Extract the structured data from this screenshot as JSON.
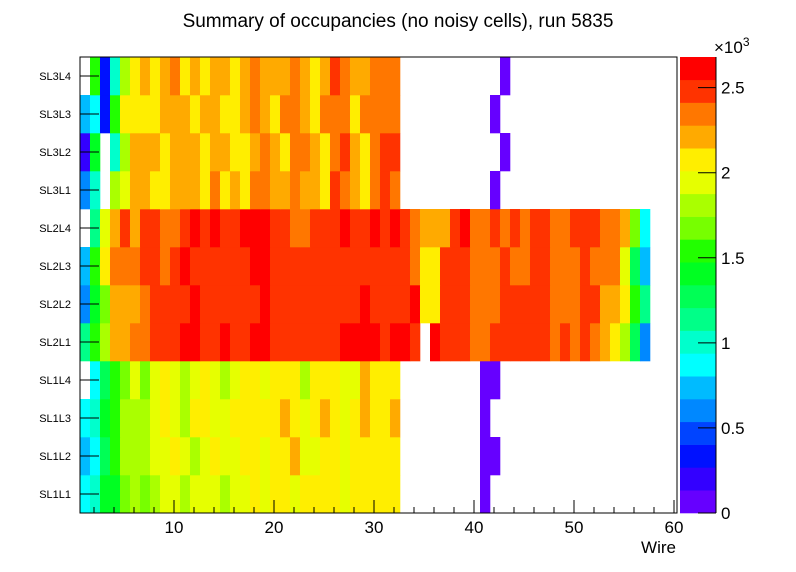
{
  "chart_data": {
    "type": "heatmap",
    "title": "Summary of occupancies (no noisy cells), run 5835",
    "xlabel": "Wire",
    "ylabel": "",
    "xlim": [
      0.6,
      60.3
    ],
    "x_ticks": [
      10,
      20,
      30,
      40,
      50,
      60
    ],
    "zlim": [
      0,
      2680
    ],
    "z_ticks": [
      0,
      0.5,
      1,
      1.5,
      2,
      2.5
    ],
    "z_multiplier_label": "×10",
    "z_multiplier_exp": "3",
    "palette": [
      "#6600ff",
      "#3300ff",
      "#0011ff",
      "#0044ff",
      "#0088ff",
      "#00bbff",
      "#00ffff",
      "#00ffcc",
      "#00ff88",
      "#00ff55",
      "#00ff22",
      "#22ff00",
      "#77ff00",
      "#aaff00",
      "#e6ff00",
      "#ffee00",
      "#ffaa00",
      "#ff7700",
      "#ff3300",
      "#ff0000"
    ],
    "wires": [
      1,
      2,
      3,
      4,
      5,
      6,
      7,
      8,
      9,
      10,
      11,
      12,
      13,
      14,
      15,
      16,
      17,
      18,
      19,
      20,
      21,
      22,
      23,
      24,
      25,
      26,
      27,
      28,
      29,
      30,
      31,
      32,
      33,
      34,
      35,
      36,
      37,
      38,
      39,
      40,
      41,
      42,
      43,
      44,
      45,
      46,
      47,
      48,
      49,
      50,
      51,
      52,
      53,
      54,
      55,
      56,
      57
    ],
    "y_categories": [
      "SL1L1",
      "SL1L2",
      "SL1L3",
      "SL1L4",
      "SL2L1",
      "SL2L2",
      "SL2L3",
      "SL2L4",
      "SL3L1",
      "SL3L2",
      "SL3L3",
      "SL3L4"
    ],
    "z": [
      [
        870,
        1000,
        1410,
        1410,
        1680,
        1810,
        1680,
        1810,
        1940,
        1940,
        1810,
        1940,
        1940,
        1940,
        1810,
        1940,
        1940,
        2080,
        1940,
        2080,
        2080,
        1940,
        2080,
        2080,
        2080,
        2080,
        1940,
        2080,
        2080,
        2080,
        2080,
        2080,
        null,
        null,
        null,
        null,
        null,
        null,
        null,
        null,
        70,
        null,
        null,
        null,
        null,
        null,
        null,
        null,
        null,
        null,
        null,
        null,
        null,
        null,
        null,
        null,
        null
      ],
      [
        740,
        870,
        1270,
        1540,
        1810,
        1810,
        1810,
        1940,
        1940,
        2080,
        1940,
        1810,
        1940,
        2080,
        1940,
        1940,
        2080,
        2080,
        1940,
        2080,
        2080,
        2210,
        1940,
        1940,
        2080,
        2080,
        1940,
        2080,
        2080,
        2080,
        2080,
        2080,
        null,
        null,
        null,
        null,
        null,
        null,
        null,
        null,
        70,
        70,
        null,
        null,
        null,
        null,
        null,
        null,
        null,
        null,
        null,
        null,
        null,
        null,
        null,
        null,
        null
      ],
      [
        870,
        1000,
        1410,
        1540,
        1810,
        1810,
        1810,
        1940,
        2080,
        1940,
        1810,
        2080,
        2080,
        1940,
        1940,
        2080,
        2080,
        2080,
        2080,
        2080,
        2210,
        2080,
        1940,
        2080,
        2210,
        2080,
        1940,
        2080,
        2210,
        2080,
        2080,
        2210,
        null,
        null,
        null,
        null,
        null,
        null,
        null,
        null,
        70,
        null,
        null,
        null,
        null,
        null,
        null,
        null,
        null,
        null,
        null,
        null,
        null,
        null,
        null,
        null,
        null
      ],
      [
        null,
        870,
        1270,
        1540,
        1680,
        1940,
        1680,
        1940,
        2080,
        1940,
        1810,
        1940,
        2080,
        1940,
        1810,
        1940,
        2080,
        2080,
        1940,
        2080,
        2080,
        2080,
        1810,
        2080,
        2080,
        2080,
        1940,
        1940,
        2210,
        2080,
        2080,
        2080,
        null,
        null,
        null,
        null,
        null,
        null,
        null,
        null,
        70,
        70,
        null,
        null,
        null,
        null,
        null,
        null,
        null,
        null,
        null,
        null,
        null,
        null,
        null,
        null,
        null
      ],
      [
        1140,
        1540,
        1810,
        2210,
        2210,
        2350,
        2350,
        2480,
        2480,
        2480,
        2610,
        2610,
        2480,
        2480,
        2610,
        2480,
        2480,
        2610,
        2610,
        2480,
        2480,
        2480,
        2480,
        2480,
        2480,
        2480,
        2610,
        2610,
        2610,
        2610,
        2480,
        2610,
        2610,
        2480,
        null,
        2610,
        2480,
        2480,
        2480,
        2350,
        2350,
        2480,
        2480,
        2480,
        2480,
        2480,
        2480,
        2350,
        2480,
        2350,
        2480,
        2350,
        2210,
        2080,
        1810,
        1270,
        600
      ],
      [
        600,
        1410,
        1680,
        2210,
        2210,
        2210,
        2350,
        2480,
        2480,
        2480,
        2480,
        2610,
        2480,
        2480,
        2480,
        2480,
        2480,
        2480,
        2610,
        2480,
        2480,
        2480,
        2480,
        2480,
        2480,
        2480,
        2480,
        2480,
        2610,
        2480,
        2480,
        2480,
        2480,
        2610,
        2080,
        2080,
        2480,
        2480,
        2480,
        2350,
        2350,
        2350,
        2480,
        2480,
        2480,
        2480,
        2480,
        2350,
        2350,
        2350,
        2480,
        2480,
        2210,
        2210,
        2080,
        1540,
        1140
      ],
      [
        740,
        1540,
        2080,
        2350,
        2350,
        2350,
        2480,
        2480,
        2350,
        2480,
        2610,
        2480,
        2480,
        2480,
        2480,
        2480,
        2480,
        2610,
        2610,
        2480,
        2480,
        2480,
        2480,
        2480,
        2480,
        2480,
        2480,
        2480,
        2480,
        2480,
        2480,
        2480,
        2480,
        2350,
        2080,
        2080,
        2480,
        2480,
        2480,
        2350,
        2350,
        2350,
        2480,
        2350,
        2350,
        2480,
        2480,
        2350,
        2350,
        2350,
        2480,
        2350,
        2350,
        2350,
        1940,
        1270,
        740
      ],
      [
        null,
        1140,
        1940,
        2210,
        2480,
        2210,
        2480,
        2480,
        2350,
        2350,
        2480,
        2610,
        2480,
        2610,
        2480,
        2480,
        2610,
        2610,
        2610,
        2480,
        2480,
        2350,
        2350,
        2480,
        2480,
        2480,
        2610,
        2480,
        2480,
        2610,
        2480,
        2610,
        2480,
        2350,
        2210,
        2210,
        2210,
        2480,
        2610,
        2350,
        2350,
        2480,
        2350,
        2480,
        2350,
        2480,
        2480,
        2350,
        2350,
        2480,
        2480,
        2480,
        2350,
        2350,
        2210,
        1680,
        870
      ],
      [
        600,
        1000,
        null,
        1810,
        1940,
        2210,
        2210,
        2080,
        2080,
        2210,
        2210,
        2210,
        2080,
        2350,
        2080,
        2210,
        2080,
        2350,
        2350,
        2210,
        2210,
        2350,
        2210,
        2210,
        2080,
        2480,
        2350,
        2210,
        2080,
        2350,
        2480,
        2350,
        null,
        null,
        null,
        null,
        null,
        null,
        null,
        null,
        null,
        70,
        null,
        null,
        null,
        null,
        null,
        null,
        null,
        null,
        null,
        null,
        null,
        null,
        null,
        null,
        null
      ],
      [
        200,
        1410,
        null,
        1000,
        1810,
        2210,
        2210,
        2210,
        2080,
        2210,
        2210,
        2210,
        2080,
        2210,
        2210,
        2080,
        2080,
        2210,
        2350,
        2210,
        2080,
        2350,
        2350,
        2210,
        2080,
        2350,
        2480,
        2210,
        2080,
        2350,
        2480,
        2480,
        null,
        null,
        null,
        null,
        null,
        null,
        null,
        null,
        null,
        null,
        70,
        null,
        null,
        null,
        null,
        null,
        null,
        null,
        null,
        null,
        null,
        null,
        null,
        null,
        null
      ],
      [
        740,
        870,
        340,
        1540,
        2080,
        2080,
        2080,
        2080,
        2210,
        2210,
        2210,
        2080,
        2210,
        2210,
        2080,
        2080,
        2210,
        2350,
        2210,
        2080,
        2350,
        2350,
        2210,
        2080,
        2350,
        2350,
        2350,
        2080,
        2350,
        2350,
        2350,
        2350,
        null,
        null,
        null,
        null,
        null,
        null,
        null,
        null,
        null,
        70,
        null,
        null,
        null,
        null,
        null,
        null,
        null,
        null,
        null,
        null,
        null,
        null,
        null,
        null,
        null
      ],
      [
        null,
        1540,
        340,
        1000,
        1810,
        2080,
        2210,
        2080,
        2210,
        2350,
        2080,
        2210,
        2080,
        2210,
        2210,
        2080,
        2210,
        2350,
        2210,
        2210,
        2210,
        2350,
        2210,
        2080,
        2210,
        2480,
        2350,
        2210,
        2210,
        2350,
        2350,
        2350,
        null,
        null,
        null,
        null,
        null,
        null,
        null,
        null,
        null,
        null,
        70,
        null,
        null,
        null,
        null,
        null,
        null,
        null,
        null,
        null,
        null,
        null,
        null,
        null,
        null
      ]
    ]
  }
}
